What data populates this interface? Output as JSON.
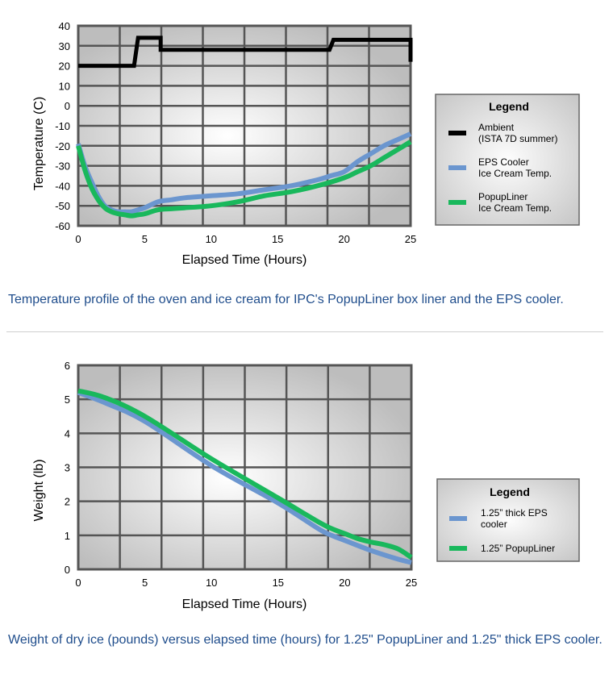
{
  "chart_data": [
    {
      "type": "line",
      "xlabel": "Elapsed Time (Hours)",
      "ylabel": "Temperature (C)",
      "xlim": [
        0,
        25
      ],
      "ylim": [
        -60,
        40
      ],
      "xticks": [
        0,
        5,
        10,
        15,
        20,
        25
      ],
      "yticks": [
        40,
        30,
        20,
        10,
        0,
        -10,
        -20,
        -30,
        -40,
        -50,
        -60
      ],
      "grid": true,
      "legend_position": "right",
      "legend_title": "Legend",
      "series": [
        {
          "name": "Ambient (ISTA 7D summer)",
          "legend_lines": [
            "Ambient",
            "(ISTA 7D summer)"
          ],
          "color": "#000000",
          "step": true,
          "x": [
            0,
            4.2,
            4.5,
            6.2,
            6.2,
            18.9,
            19.2,
            25,
            25
          ],
          "y": [
            20,
            20,
            34,
            34,
            28,
            28,
            33,
            33,
            22
          ]
        },
        {
          "name": "EPS Cooler Ice Cream Temp.",
          "legend_lines": [
            "EPS Cooler",
            "Ice Cream Temp."
          ],
          "color": "#6b96cf",
          "x": [
            0,
            0.5,
            1,
            1.5,
            2,
            2.5,
            3,
            3.5,
            4,
            4.5,
            5,
            6,
            7,
            8,
            10,
            12,
            14,
            16,
            18,
            19,
            20,
            21,
            22,
            23,
            24,
            25
          ],
          "y": [
            -19,
            -30,
            -38,
            -45,
            -50,
            -52,
            -53,
            -53,
            -53,
            -52,
            -51,
            -48,
            -47,
            -46,
            -45,
            -44,
            -42,
            -40,
            -37,
            -35,
            -33,
            -28,
            -24,
            -20,
            -17,
            -14
          ]
        },
        {
          "name": "PopupLiner Ice Cream Temp.",
          "legend_lines": [
            "PopupLiner",
            "Ice Cream Temp."
          ],
          "color": "#19b85c",
          "x": [
            0,
            0.5,
            1,
            1.5,
            2,
            2.5,
            3,
            3.5,
            4,
            4.5,
            5,
            6,
            7,
            8,
            10,
            12,
            14,
            16,
            18,
            20,
            21,
            22,
            23,
            24,
            25
          ],
          "y": [
            -20,
            -32,
            -41,
            -47,
            -51,
            -53,
            -54,
            -54.5,
            -55,
            -54.5,
            -54,
            -52,
            -51.5,
            -51,
            -50,
            -48,
            -45,
            -43,
            -40,
            -36,
            -33,
            -30,
            -26,
            -22,
            -18
          ]
        }
      ]
    },
    {
      "type": "line",
      "xlabel": "Elapsed Time (Hours)",
      "ylabel": "Weight (lb)",
      "xlim": [
        0,
        25
      ],
      "ylim": [
        0,
        6
      ],
      "xticks": [
        0,
        5,
        10,
        15,
        20,
        25
      ],
      "yticks": [
        6,
        5,
        4,
        3,
        2,
        1,
        0
      ],
      "grid": true,
      "legend_position": "right",
      "legend_title": "Legend",
      "series": [
        {
          "name": "1.25” thick EPS cooler",
          "legend_lines": [
            "1.25” thick EPS",
            "cooler"
          ],
          "color": "#6b96cf",
          "x": [
            0,
            2,
            5,
            10,
            15,
            18,
            19,
            20,
            22,
            24,
            25
          ],
          "y": [
            5.2,
            4.9,
            4.35,
            3.05,
            1.95,
            1.2,
            1.0,
            0.85,
            0.55,
            0.3,
            0.2
          ]
        },
        {
          "name": "1.25” PopupLiner",
          "legend_lines": [
            "1.25” PopupLiner"
          ],
          "color": "#19b85c",
          "x": [
            0,
            2,
            5,
            10,
            15,
            18,
            19,
            20,
            21,
            22,
            23,
            24,
            25
          ],
          "y": [
            5.25,
            5.05,
            4.5,
            3.25,
            2.1,
            1.4,
            1.2,
            1.05,
            0.9,
            0.8,
            0.72,
            0.6,
            0.35
          ]
        }
      ]
    }
  ],
  "captions": {
    "chart1": "Temperature profile of the oven and ice cream for IPC's PopupLiner box liner and the EPS cooler.",
    "chart2": "Weight of dry ice (pounds) versus elapsed time (hours) for 1.25\" PopupLiner and 1.25\" thick EPS cooler."
  }
}
